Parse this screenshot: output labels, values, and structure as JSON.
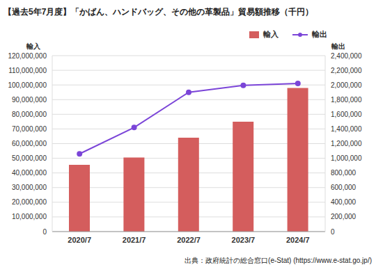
{
  "chart_data": {
    "type": "bar",
    "title": "【過去5年7月度】「かばん、ハンドバッグ、その他の革製品」貿易額推移（千円）",
    "ylabel": "輸入",
    "y2label": "輸出",
    "source": "出典：政府統計の総合窓口(e-Stat) (https://www.e-stat.go.jp/)",
    "categories": [
      "2020/7",
      "2021/7",
      "2022/7",
      "2023/7",
      "2024/7"
    ],
    "series": [
      {
        "name": "輸入",
        "type": "bar",
        "color": "#d45d5d",
        "values": [
          45500000,
          50500000,
          64000000,
          75000000,
          98000000
        ]
      },
      {
        "name": "輸出",
        "type": "line",
        "axis": "y2",
        "color": "#7b45d8",
        "marker": "circle",
        "values": [
          1060000,
          1420000,
          1900000,
          1995000,
          2020000
        ]
      }
    ],
    "ylim": [
      0,
      120000000
    ],
    "yticks": [
      0,
      {
        "value": 10000000,
        "label": "10,000,000"
      },
      {
        "value": 20000000,
        "label": "20,000,000"
      },
      {
        "value": 30000000,
        "label": "30,000,000"
      },
      {
        "value": 40000000,
        "label": "40,000,000"
      },
      {
        "value": 50000000,
        "label": "50,000,000"
      },
      {
        "value": 60000000,
        "label": "60,000,000"
      },
      {
        "value": 70000000,
        "label": "70,000,000"
      },
      {
        "value": 80000000,
        "label": "80,000,000"
      },
      {
        "value": 90000000,
        "label": "90,000,000"
      },
      {
        "value": 100000000,
        "label": "100,000,000"
      },
      {
        "value": 110000000,
        "label": "110,000,000"
      },
      {
        "value": 120000000,
        "label": "120,000,000"
      }
    ],
    "y2lim": [
      0,
      2400000
    ],
    "y2ticks": [
      0,
      {
        "value": 200000,
        "label": "200,000"
      },
      {
        "value": 400000,
        "label": "400,000"
      },
      {
        "value": 600000,
        "label": "600,000"
      },
      {
        "value": 800000,
        "label": "800,000"
      },
      {
        "value": 1000000,
        "label": "1,000,000"
      },
      {
        "value": 1200000,
        "label": "1,200,000"
      },
      {
        "value": 1400000,
        "label": "1,400,000"
      },
      {
        "value": 1600000,
        "label": "1,600,000"
      },
      {
        "value": 1800000,
        "label": "1,800,000"
      },
      {
        "value": 2000000,
        "label": "2,000,000"
      },
      {
        "value": 2200000,
        "label": "2,200,000"
      },
      {
        "value": 2400000,
        "label": "2,400,000"
      }
    ],
    "grid": true,
    "legend": "top-right"
  }
}
